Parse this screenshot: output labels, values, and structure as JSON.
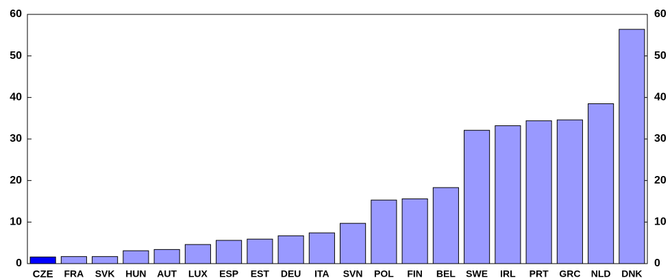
{
  "chart_data": {
    "type": "bar",
    "categories": [
      "CZE",
      "FRA",
      "SVK",
      "HUN",
      "AUT",
      "LUX",
      "ESP",
      "EST",
      "DEU",
      "ITA",
      "SVN",
      "POL",
      "FIN",
      "BEL",
      "SWE",
      "IRL",
      "PRT",
      "GRC",
      "NLD",
      "DNK"
    ],
    "values": [
      1.6,
      1.7,
      1.7,
      3.1,
      3.4,
      4.6,
      5.6,
      5.9,
      6.7,
      7.4,
      9.7,
      15.3,
      15.6,
      18.3,
      32.1,
      33.2,
      34.4,
      34.6,
      38.5,
      56.4
    ],
    "colors": [
      "#0000ff",
      "#9999ff",
      "#9999ff",
      "#9999ff",
      "#9999ff",
      "#9999ff",
      "#9999ff",
      "#9999ff",
      "#9999ff",
      "#9999ff",
      "#9999ff",
      "#9999ff",
      "#9999ff",
      "#9999ff",
      "#9999ff",
      "#9999ff",
      "#9999ff",
      "#9999ff",
      "#9999ff",
      "#9999ff"
    ],
    "ylim": [
      0,
      60
    ],
    "yticks": [
      0,
      10,
      20,
      30,
      40,
      50,
      60
    ],
    "y2lim": [
      0,
      60
    ],
    "y2ticks": [
      0,
      10,
      20,
      30,
      40,
      50,
      60
    ],
    "grid": false
  }
}
